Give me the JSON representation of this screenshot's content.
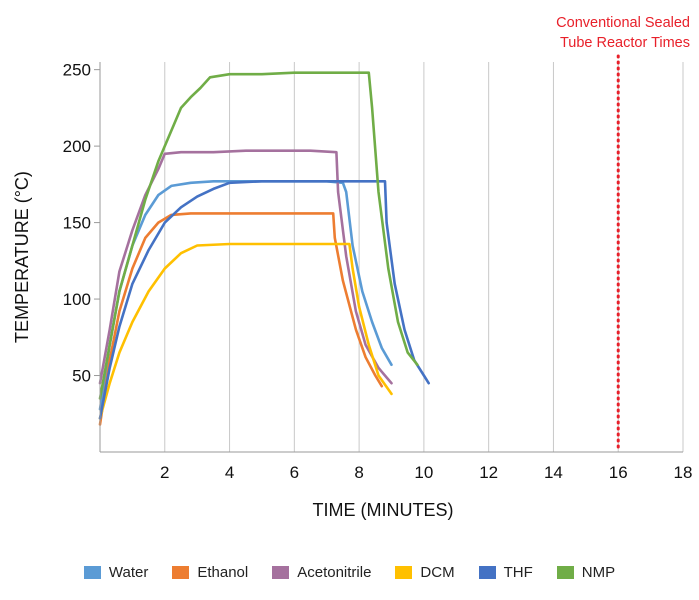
{
  "chart_data": {
    "type": "line",
    "xlabel": "TIME (MINUTES)",
    "ylabel": "TEMPERATURE (°C)",
    "xlim": [
      0,
      18
    ],
    "ylim": [
      0,
      255
    ],
    "xticks": [
      2,
      4,
      6,
      8,
      10,
      12,
      14,
      16,
      18
    ],
    "yticks": [
      50,
      100,
      150,
      200,
      250
    ],
    "grid": "vertical gridlines at each x tick",
    "legend_position": "bottom",
    "annotation": {
      "lines": [
        "Conventional Sealed",
        "Tube Reactor Times"
      ],
      "x": 16,
      "color": "#e8202a",
      "style": "dotted vertical line"
    },
    "series": [
      {
        "name": "Water",
        "color": "#5b9bd5",
        "x": [
          0,
          0.3,
          0.6,
          1.0,
          1.4,
          1.8,
          2.2,
          2.8,
          3.5,
          4.5,
          5.5,
          6.5,
          7.0,
          7.5,
          7.6,
          7.8,
          8.1,
          8.4,
          8.7,
          9.0
        ],
        "y": [
          28,
          70,
          105,
          135,
          155,
          168,
          174,
          176,
          177,
          177,
          177,
          177,
          177,
          176,
          170,
          135,
          105,
          85,
          68,
          57
        ]
      },
      {
        "name": "Ethanol",
        "color": "#ed7d31",
        "x": [
          0,
          0.3,
          0.6,
          1.0,
          1.4,
          1.8,
          2.2,
          2.8,
          3.5,
          4.5,
          5.5,
          6.5,
          7.2,
          7.25,
          7.5,
          7.9,
          8.2,
          8.5,
          8.7
        ],
        "y": [
          18,
          60,
          92,
          120,
          140,
          150,
          155,
          156,
          156,
          156,
          156,
          156,
          156,
          140,
          112,
          80,
          62,
          50,
          43
        ]
      },
      {
        "name": "Acetonitrile",
        "color": "#a5719e",
        "x": [
          0,
          0.3,
          0.6,
          1.0,
          1.4,
          1.8,
          2.0,
          2.5,
          3.5,
          4.5,
          5.5,
          6.5,
          7.3,
          7.35,
          7.6,
          7.9,
          8.2,
          8.6,
          9.0
        ],
        "y": [
          45,
          80,
          118,
          145,
          168,
          185,
          195,
          196,
          196,
          197,
          197,
          197,
          196,
          170,
          128,
          92,
          70,
          55,
          45
        ]
      },
      {
        "name": "DCM",
        "color": "#ffc000",
        "x": [
          0,
          0.3,
          0.6,
          1.0,
          1.5,
          2.0,
          2.5,
          3.0,
          4.0,
          5.0,
          6.0,
          7.0,
          7.7,
          7.8,
          8.0,
          8.3,
          8.6,
          9.0
        ],
        "y": [
          22,
          45,
          65,
          85,
          105,
          120,
          130,
          135,
          136,
          136,
          136,
          136,
          136,
          120,
          95,
          70,
          50,
          38
        ]
      },
      {
        "name": "THF",
        "color": "#4472c4",
        "x": [
          0,
          0.3,
          0.6,
          1.0,
          1.5,
          2.0,
          2.5,
          3.0,
          3.5,
          4.0,
          5.0,
          6.0,
          7.0,
          8.0,
          8.8,
          8.85,
          9.1,
          9.4,
          9.7,
          10.0,
          10.15
        ],
        "y": [
          22,
          55,
          82,
          110,
          132,
          150,
          160,
          167,
          172,
          176,
          177,
          177,
          177,
          177,
          177,
          150,
          110,
          80,
          60,
          50,
          45
        ]
      },
      {
        "name": "NMP",
        "color": "#70ad47",
        "x": [
          0,
          0.3,
          0.6,
          1.0,
          1.4,
          1.8,
          2.2,
          2.5,
          2.8,
          3.1,
          3.4,
          4.0,
          5.0,
          6.0,
          7.0,
          8.0,
          8.3,
          8.4,
          8.6,
          8.9,
          9.2,
          9.5,
          9.8
        ],
        "y": [
          35,
          70,
          105,
          135,
          165,
          190,
          210,
          225,
          232,
          238,
          245,
          247,
          247,
          248,
          248,
          248,
          248,
          225,
          170,
          120,
          85,
          65,
          57
        ]
      }
    ]
  }
}
